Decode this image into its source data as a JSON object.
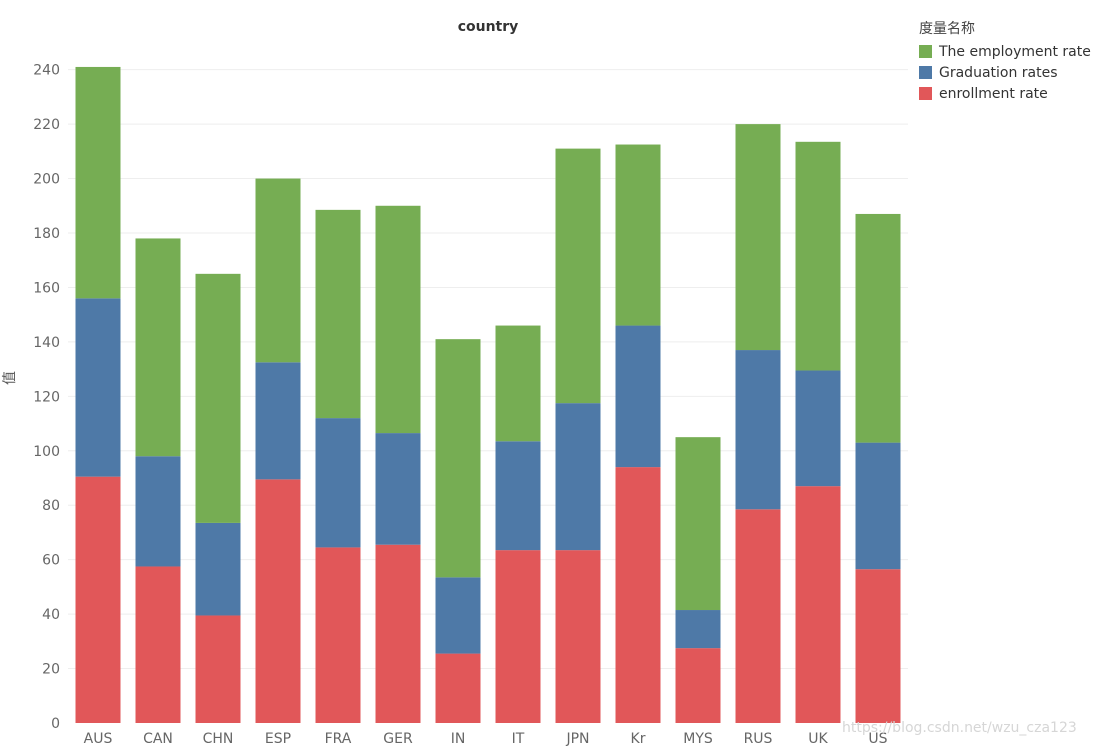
{
  "chart_data": {
    "type": "bar",
    "stacked": true,
    "title": "country",
    "xlabel": "",
    "ylabel": "值",
    "ylim": [
      0,
      252
    ],
    "yticks": [
      0,
      20,
      40,
      60,
      80,
      100,
      120,
      140,
      160,
      180,
      200,
      220,
      240
    ],
    "categories": [
      "AUS",
      "CAN",
      "CHN",
      "ESP",
      "FRA",
      "GER",
      "IN",
      "IT",
      "JPN",
      "Kr",
      "MYS",
      "RUS",
      "UK",
      "US"
    ],
    "legend_title": "度量名称",
    "legend_position": "top-right",
    "series": [
      {
        "name": "enrollment rate",
        "color": "#e15759",
        "values": [
          90.5,
          57.5,
          39.5,
          89.5,
          64.5,
          65.5,
          25.5,
          63.5,
          63.5,
          94,
          27.5,
          78.5,
          87,
          56.5
        ]
      },
      {
        "name": "Graduation rates",
        "color": "#4e79a7",
        "values": [
          65.5,
          40.5,
          34,
          43,
          47.5,
          41,
          28,
          40,
          54,
          52,
          14,
          58.5,
          42.5,
          46.5
        ]
      },
      {
        "name": "The employment rate",
        "color": "#76ad53",
        "values": [
          85,
          80,
          91.5,
          67.5,
          76.5,
          83.5,
          87.5,
          42.5,
          93.5,
          66.5,
          63.5,
          83,
          84,
          84
        ]
      }
    ],
    "legend_order": [
      "The employment rate",
      "Graduation rates",
      "enrollment rate"
    ]
  },
  "watermark": "https://blog.csdn.net/wzu_cza123"
}
